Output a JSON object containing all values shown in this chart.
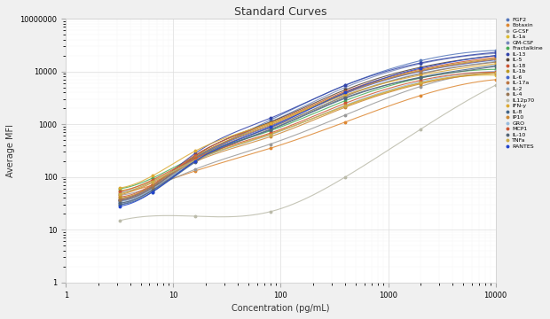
{
  "title": "Standard Curves",
  "xlabel": "Concentration (pg/mL)",
  "ylabel": "Average MFI",
  "xlim": [
    1,
    10000
  ],
  "ylim": [
    1,
    100000
  ],
  "bg_color": "#ffffff",
  "fig_bg": "#f0f0f0",
  "series": [
    {
      "label": "FGF2",
      "color": "#5577bb",
      "x": [
        3.2,
        6.4,
        16,
        80,
        400,
        2000,
        10000
      ],
      "y": [
        30,
        55,
        200,
        1200,
        5500,
        16000,
        25000
      ]
    },
    {
      "label": "Eotaxin",
      "color": "#dd8833",
      "x": [
        3.2,
        6.4,
        16,
        80,
        400,
        2000,
        10000
      ],
      "y": [
        50,
        70,
        130,
        350,
        1100,
        3500,
        7000
      ]
    },
    {
      "label": "G-CSF",
      "color": "#999999",
      "x": [
        3.2,
        6.4,
        16,
        80,
        400,
        2000,
        10000
      ],
      "y": [
        45,
        65,
        140,
        420,
        1500,
        5200,
        9500
      ]
    },
    {
      "label": "IL-1a",
      "color": "#ddbb33",
      "x": [
        3.2,
        6.4,
        16,
        80,
        400,
        2000,
        10000
      ],
      "y": [
        55,
        85,
        210,
        650,
        2200,
        6000,
        8500
      ]
    },
    {
      "label": "GM-CSF",
      "color": "#7788bb",
      "x": [
        3.2,
        6.4,
        16,
        80,
        400,
        2000,
        10000
      ],
      "y": [
        32,
        58,
        220,
        1100,
        5000,
        14000,
        22000
      ]
    },
    {
      "label": "Fractalkine",
      "color": "#44aa55",
      "x": [
        3.2,
        6.4,
        16,
        80,
        400,
        2000,
        10000
      ],
      "y": [
        60,
        95,
        240,
        750,
        2800,
        7500,
        11000
      ]
    },
    {
      "label": "IL-13",
      "color": "#3344aa",
      "x": [
        3.2,
        6.4,
        16,
        80,
        400,
        2000,
        10000
      ],
      "y": [
        38,
        68,
        280,
        1300,
        5500,
        14500,
        23000
      ]
    },
    {
      "label": "IL-5",
      "color": "#554433",
      "x": [
        3.2,
        6.4,
        16,
        80,
        400,
        2000,
        10000
      ],
      "y": [
        36,
        62,
        250,
        1100,
        4500,
        12000,
        20000
      ]
    },
    {
      "label": "IL-18",
      "color": "#cc5533",
      "x": [
        3.2,
        6.4,
        16,
        80,
        400,
        2000,
        10000
      ],
      "y": [
        42,
        72,
        260,
        1050,
        4200,
        11000,
        18500
      ]
    },
    {
      "label": "IL-1b",
      "color": "#bb9922",
      "x": [
        3.2,
        6.4,
        16,
        80,
        400,
        2000,
        10000
      ],
      "y": [
        40,
        68,
        240,
        1000,
        4000,
        10500,
        17500
      ]
    },
    {
      "label": "IL-6",
      "color": "#4466cc",
      "x": [
        3.2,
        6.4,
        16,
        80,
        400,
        2000,
        10000
      ],
      "y": [
        35,
        64,
        230,
        920,
        3800,
        10000,
        16500
      ]
    },
    {
      "label": "IL-17a",
      "color": "#bb7744",
      "x": [
        3.2,
        6.4,
        16,
        80,
        400,
        2000,
        10000
      ],
      "y": [
        38,
        68,
        240,
        950,
        3900,
        10200,
        17000
      ]
    },
    {
      "label": "IL-2",
      "color": "#88aacc",
      "x": [
        3.2,
        6.4,
        16,
        80,
        400,
        2000,
        10000
      ],
      "y": [
        34,
        60,
        210,
        850,
        3500,
        9200,
        15500
      ]
    },
    {
      "label": "IL-4",
      "color": "#997755",
      "x": [
        3.2,
        6.4,
        16,
        80,
        400,
        2000,
        10000
      ],
      "y": [
        36,
        63,
        220,
        860,
        3400,
        9000,
        15000
      ]
    },
    {
      "label": "IL12p70",
      "color": "#bbbbaa",
      "x": [
        3.2,
        16,
        80,
        400,
        2000,
        10000
      ],
      "y": [
        15,
        18,
        22,
        100,
        800,
        5500
      ]
    },
    {
      "label": "IFN-y",
      "color": "#ddaa33",
      "x": [
        3.2,
        6.4,
        16,
        80,
        400,
        2000,
        10000
      ],
      "y": [
        62,
        105,
        310,
        1050,
        3600,
        8500,
        14000
      ]
    },
    {
      "label": "IL-8",
      "color": "#446688",
      "x": [
        3.2,
        6.4,
        16,
        80,
        400,
        2000,
        10000
      ],
      "y": [
        30,
        52,
        190,
        780,
        3100,
        7800,
        13000
      ]
    },
    {
      "label": "IP10",
      "color": "#cc8833",
      "x": [
        3.2,
        6.4,
        16,
        80,
        400,
        2000,
        10000
      ],
      "y": [
        46,
        78,
        195,
        580,
        2100,
        5800,
        9200
      ]
    },
    {
      "label": "GRO",
      "color": "#99bbdd",
      "x": [
        3.2,
        6.4,
        16,
        80,
        400,
        2000,
        10000
      ],
      "y": [
        50,
        82,
        205,
        630,
        2300,
        6400,
        10100
      ]
    },
    {
      "label": "MCP1",
      "color": "#cc5533",
      "x": [
        3.2,
        6.4,
        16,
        80,
        400,
        2000,
        10000
      ],
      "y": [
        53,
        88,
        225,
        680,
        2500,
        6800,
        9700
      ]
    },
    {
      "label": "IL-10",
      "color": "#556677",
      "x": [
        3.2,
        6.4,
        16,
        80,
        400,
        2000,
        10000
      ],
      "y": [
        32,
        56,
        200,
        800,
        3200,
        7600,
        12400
      ]
    },
    {
      "label": "TNFa",
      "color": "#ccaa44",
      "x": [
        3.2,
        6.4,
        16,
        80,
        400,
        2000,
        10000
      ],
      "y": [
        48,
        82,
        208,
        640,
        2250,
        6100,
        9400
      ]
    },
    {
      "label": "RANTES",
      "color": "#2244cc",
      "x": [
        3.2,
        6.4,
        16,
        80,
        400,
        2000,
        10000
      ],
      "y": [
        28,
        52,
        200,
        880,
        4000,
        11500,
        20000
      ]
    }
  ]
}
